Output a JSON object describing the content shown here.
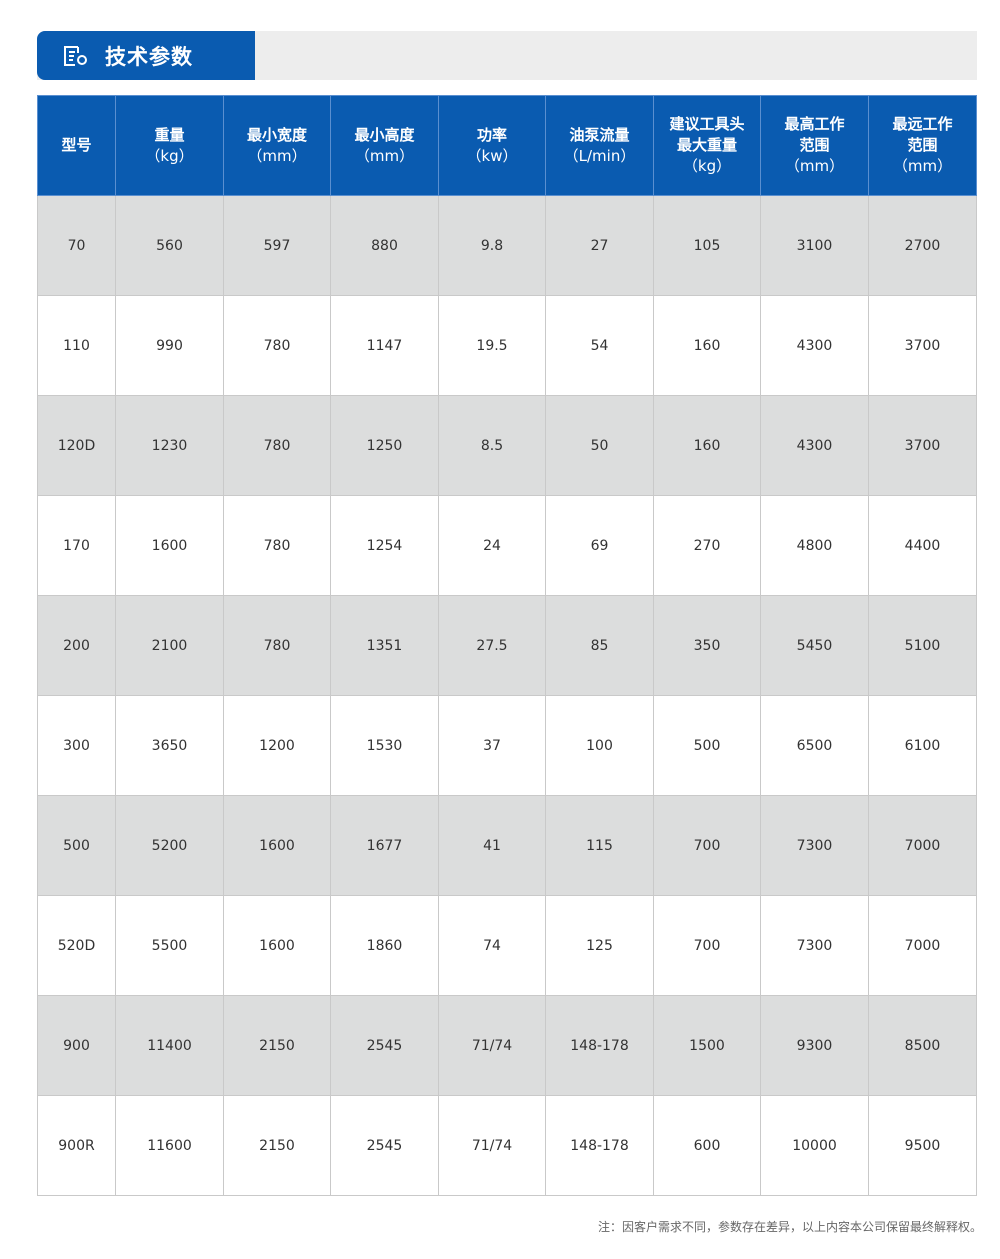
{
  "title": {
    "text": "技术参数",
    "icon": "spec-document-gear-icon"
  },
  "table": {
    "headers": [
      {
        "label": "型号",
        "unit": ""
      },
      {
        "label": "重量",
        "unit": "（kg）"
      },
      {
        "label": "最小宽度",
        "unit": "（mm）"
      },
      {
        "label": "最小高度",
        "unit": "（mm）"
      },
      {
        "label": "功率",
        "unit": "（kw）"
      },
      {
        "label": "油泵流量",
        "unit": "（L/min）"
      },
      {
        "label": "建议工具头\n最大重量",
        "unit": "（kg）"
      },
      {
        "label": "最高工作\n范围",
        "unit": "（mm）"
      },
      {
        "label": "最远工作\n范围",
        "unit": "（mm）"
      }
    ],
    "rows": [
      [
        "70",
        "560",
        "597",
        "880",
        "9.8",
        "27",
        "105",
        "3100",
        "2700"
      ],
      [
        "110",
        "990",
        "780",
        "1147",
        "19.5",
        "54",
        "160",
        "4300",
        "3700"
      ],
      [
        "120D",
        "1230",
        "780",
        "1250",
        "8.5",
        "50",
        "160",
        "4300",
        "3700"
      ],
      [
        "170",
        "1600",
        "780",
        "1254",
        "24",
        "69",
        "270",
        "4800",
        "4400"
      ],
      [
        "200",
        "2100",
        "780",
        "1351",
        "27.5",
        "85",
        "350",
        "5450",
        "5100"
      ],
      [
        "300",
        "3650",
        "1200",
        "1530",
        "37",
        "100",
        "500",
        "6500",
        "6100"
      ],
      [
        "500",
        "5200",
        "1600",
        "1677",
        "41",
        "115",
        "700",
        "7300",
        "7000"
      ],
      [
        "520D",
        "5500",
        "1600",
        "1860",
        "74",
        "125",
        "700",
        "7300",
        "7000"
      ],
      [
        "900",
        "11400",
        "2150",
        "2545",
        "71/74",
        "148-178",
        "1500",
        "9300",
        "8500"
      ],
      [
        "900R",
        "11600",
        "2150",
        "2545",
        "71/74",
        "148-178",
        "600",
        "10000",
        "9500"
      ]
    ]
  },
  "note": "注：因客户需求不同，参数存在差异，以上内容本公司保留最终解释权。",
  "colors": {
    "brand_blue": "#0a5bb0",
    "row_gray": "#dcdddd"
  }
}
